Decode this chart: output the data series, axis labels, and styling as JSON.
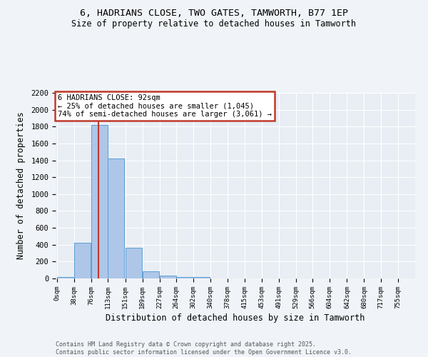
{
  "title": "6, HADRIANS CLOSE, TWO GATES, TAMWORTH, B77 1EP",
  "subtitle": "Size of property relative to detached houses in Tamworth",
  "xlabel": "Distribution of detached houses by size in Tamworth",
  "ylabel": "Number of detached properties",
  "bin_labels": [
    "0sqm",
    "38sqm",
    "76sqm",
    "113sqm",
    "151sqm",
    "189sqm",
    "227sqm",
    "264sqm",
    "302sqm",
    "340sqm",
    "378sqm",
    "415sqm",
    "453sqm",
    "491sqm",
    "529sqm",
    "566sqm",
    "604sqm",
    "642sqm",
    "680sqm",
    "717sqm",
    "755sqm"
  ],
  "bar_values": [
    20,
    425,
    1820,
    1420,
    360,
    85,
    35,
    20,
    15,
    0,
    0,
    0,
    0,
    0,
    0,
    0,
    0,
    0,
    0,
    0,
    0
  ],
  "bar_color": "#aec6e8",
  "bar_edge_color": "#5a9fd4",
  "vline_x": 92,
  "vline_color": "#c0392b",
  "ylim": [
    0,
    2200
  ],
  "annotation_text": "6 HADRIANS CLOSE: 92sqm\n← 25% of detached houses are smaller (1,045)\n74% of semi-detached houses are larger (3,061) →",
  "annotation_box_color": "#c0392b",
  "bg_color": "#e8eef4",
  "fig_bg_color": "#f0f4f8",
  "footer_text": "Contains HM Land Registry data © Crown copyright and database right 2025.\nContains public sector information licensed under the Open Government Licence v3.0.",
  "bin_width": 37.5,
  "bin_starts": [
    0,
    38,
    76,
    113,
    151,
    189,
    227,
    264,
    302,
    340,
    378,
    415,
    453,
    491,
    529,
    566,
    604,
    642,
    680,
    717,
    755
  ],
  "yticks": [
    0,
    200,
    400,
    600,
    800,
    1000,
    1200,
    1400,
    1600,
    1800,
    2000,
    2200
  ]
}
